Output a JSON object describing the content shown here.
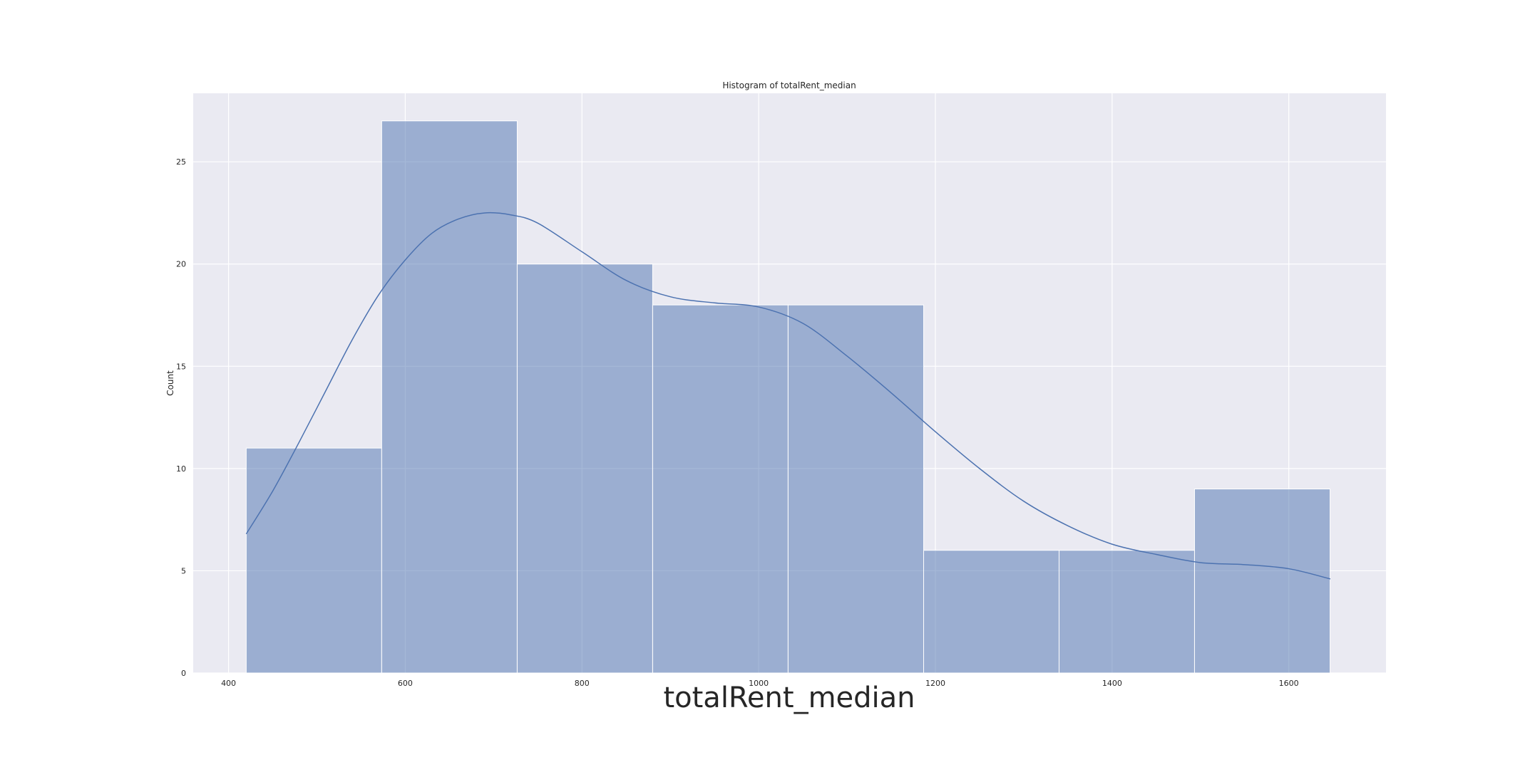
{
  "chart_data": {
    "type": "bar",
    "title": "Histogram of totalRent_median",
    "xlabel": "totalRent_median",
    "ylabel": "Count",
    "xlim": [
      360,
      1710
    ],
    "ylim": [
      0,
      28.35
    ],
    "x_ticks": [
      400,
      600,
      800,
      1000,
      1200,
      1400,
      1600
    ],
    "y_ticks": [
      0,
      5,
      10,
      15,
      20,
      25
    ],
    "grid": true,
    "bins": [
      {
        "x0": 420,
        "x1": 573.3,
        "count": 11
      },
      {
        "x0": 573.3,
        "x1": 726.7,
        "count": 27
      },
      {
        "x0": 726.7,
        "x1": 880,
        "count": 20
      },
      {
        "x0": 880,
        "x1": 1033.3,
        "count": 18
      },
      {
        "x0": 1033.3,
        "x1": 1186.7,
        "count": 18
      },
      {
        "x0": 1186.7,
        "x1": 1340,
        "count": 6
      },
      {
        "x0": 1340,
        "x1": 1493.3,
        "count": 6
      },
      {
        "x0": 1493.3,
        "x1": 1646.7,
        "count": 9
      }
    ],
    "kde": {
      "x": [
        420,
        450,
        480,
        510,
        540,
        570,
        600,
        630,
        660,
        690,
        720,
        750,
        800,
        850,
        900,
        950,
        1000,
        1050,
        1100,
        1150,
        1200,
        1250,
        1300,
        1350,
        1400,
        1450,
        1500,
        1550,
        1600,
        1647
      ],
      "y": [
        6.8,
        8.9,
        11.3,
        13.8,
        16.3,
        18.5,
        20.2,
        21.5,
        22.2,
        22.5,
        22.4,
        22.0,
        20.6,
        19.2,
        18.4,
        18.1,
        17.9,
        17.1,
        15.5,
        13.7,
        11.8,
        10.0,
        8.4,
        7.2,
        6.3,
        5.8,
        5.4,
        5.3,
        5.1,
        4.6
      ]
    },
    "colors": {
      "plot_background": "#eaeaf2",
      "grid": "#ffffff",
      "bar_fill": "#4c72b0",
      "bar_opacity": 0.5,
      "bar_edge": "#ffffff",
      "kde_line": "#4c72b0",
      "text": "#262626"
    }
  }
}
